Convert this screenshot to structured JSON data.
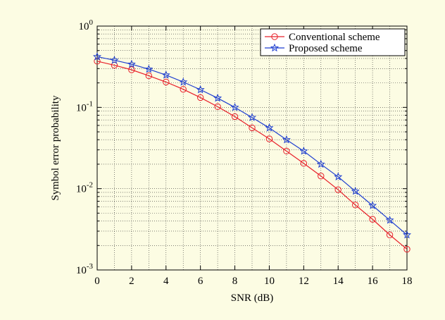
{
  "chart_data": {
    "type": "line",
    "title": "",
    "xlabel": "SNR (dB)",
    "ylabel": "Symbol error probability",
    "xlim": [
      0,
      18
    ],
    "ylim": [
      0.001,
      1
    ],
    "yscale": "log",
    "grid": true,
    "legend_position": "top-right",
    "xticks": [
      "0",
      "2",
      "4",
      "6",
      "8",
      "10",
      "12",
      "14",
      "16",
      "18"
    ],
    "yticks": [
      {
        "base": "10",
        "exp": "0"
      },
      {
        "base": "10",
        "exp": "-1"
      },
      {
        "base": "10",
        "exp": "-2"
      },
      {
        "base": "10",
        "exp": "-3"
      }
    ],
    "x": [
      0,
      1,
      2,
      3,
      4,
      5,
      6,
      7,
      8,
      9,
      10,
      11,
      12,
      13,
      14,
      15,
      16,
      17,
      18
    ],
    "series": [
      {
        "name": "Conventional scheme",
        "color": "#e8202a",
        "marker": "circle",
        "values": [
          0.37,
          0.33,
          0.29,
          0.245,
          0.205,
          0.167,
          0.132,
          0.102,
          0.077,
          0.056,
          0.041,
          0.029,
          0.0205,
          0.0143,
          0.0097,
          0.0063,
          0.0042,
          0.0027,
          0.0018
        ]
      },
      {
        "name": "Proposed scheme",
        "color": "#1f3fd0",
        "marker": "star",
        "values": [
          0.42,
          0.38,
          0.34,
          0.295,
          0.25,
          0.205,
          0.165,
          0.13,
          0.1,
          0.075,
          0.056,
          0.04,
          0.029,
          0.02,
          0.014,
          0.0093,
          0.0062,
          0.0041,
          0.0027
        ]
      }
    ]
  }
}
